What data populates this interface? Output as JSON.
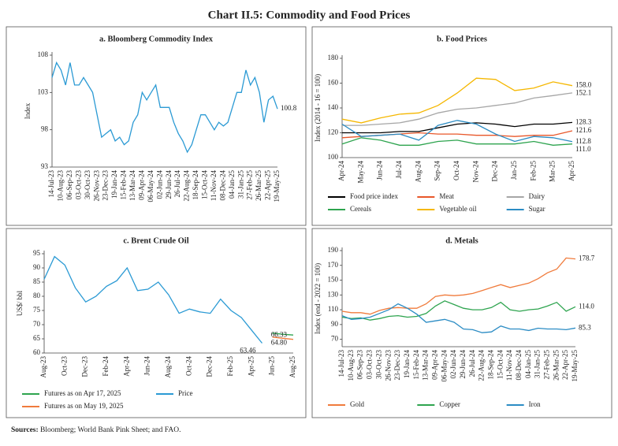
{
  "title": "Chart II.5: Commodity and Food Prices",
  "sources_label": "Sources:",
  "sources": "Bloomberg; World Bank Pink Sheet; and FAO.",
  "chart_data": [
    {
      "type": "line",
      "title": "a. Bloomberg Commodity Index",
      "y_label": "Index",
      "categories": [
        "14-Jul-23",
        null,
        "10-Aug-23",
        null,
        "06-Sep-23",
        null,
        "03-Oct-23",
        null,
        "30-Oct-23",
        null,
        "26-Nov-23",
        null,
        "23-Dec-23",
        null,
        "19-Jan-24",
        null,
        "15-Feb-24",
        null,
        "13-Mar-24",
        null,
        "09-Apr-24",
        null,
        "06-May-24",
        null,
        "02-Jun-24",
        null,
        "29-Jun-24",
        null,
        "26-Jul-24",
        null,
        "22-Aug-24",
        null,
        "18-Sep-24",
        null,
        "15-Oct-24",
        null,
        "11-Nov-24",
        null,
        "08-Dec-24",
        null,
        "04-Jan-25",
        null,
        "31-Jan-25",
        null,
        "27-Feb-25",
        null,
        "26-Mar-25",
        null,
        "22-Apr-25",
        null,
        "19-May-25"
      ],
      "series": [
        {
          "name": "Bloomberg Commodity Index",
          "color": "#2b9ad4",
          "values": [
            105,
            107,
            106,
            104,
            107,
            104,
            104,
            105,
            104,
            103,
            100,
            97,
            97.5,
            98,
            96.5,
            97,
            96,
            96.5,
            99,
            100,
            103,
            102,
            103,
            104,
            101,
            101,
            101,
            99,
            97.5,
            96.5,
            95,
            96,
            98,
            100,
            100,
            99,
            98,
            99,
            98.5,
            99,
            101,
            103,
            103,
            106,
            104,
            105,
            103,
            99,
            102,
            102.5,
            100.8
          ]
        }
      ],
      "ylim": [
        93,
        108
      ],
      "yticks": [
        93,
        98,
        103,
        108
      ],
      "legend": false
    },
    {
      "type": "line",
      "title": "b. Food Prices",
      "y_label": "Index (2014 - 16 = 100)",
      "categories": [
        "Apr-24",
        "May-24",
        "Jun-24",
        "Jul-24",
        "Aug-24",
        "Sep-24",
        "Oct-24",
        "Nov-24",
        "Dec-24",
        "Jan-25",
        "Feb-25",
        "Mar-25",
        "Apr-25"
      ],
      "series": [
        {
          "name": "Food price index",
          "color": "#000000",
          "values": [
            120,
            120,
            120,
            121,
            121,
            124,
            127,
            128,
            127,
            125,
            127,
            127,
            128.3
          ]
        },
        {
          "name": "Meat",
          "color": "#e8572a",
          "values": [
            116,
            117,
            118,
            119,
            120,
            119,
            119,
            118,
            118,
            117,
            118,
            118,
            121.6
          ]
        },
        {
          "name": "Dairy",
          "color": "#a6a6a6",
          "values": [
            126,
            126,
            127,
            128,
            131,
            136,
            139,
            140,
            142,
            144,
            148,
            150,
            152.1
          ]
        },
        {
          "name": "Cereals",
          "color": "#2ea44f",
          "values": [
            111,
            116,
            114,
            110,
            110,
            113,
            114,
            111,
            111,
            111,
            113,
            110,
            111
          ],
          "value_labels": [
            null,
            null,
            null,
            null,
            null,
            null,
            null,
            null,
            null,
            null,
            null,
            null,
            "111.0"
          ]
        },
        {
          "name": "Vegetable oil",
          "color": "#f5b700",
          "values": [
            131,
            128,
            132,
            135,
            136,
            142,
            152,
            164,
            163,
            154,
            156,
            161,
            158
          ],
          "value_labels": [
            null,
            null,
            null,
            null,
            null,
            null,
            null,
            null,
            null,
            null,
            null,
            null,
            "158.0"
          ]
        },
        {
          "name": "Sugar",
          "color": "#2b8cc4",
          "values": [
            127,
            117,
            118,
            119,
            114,
            126,
            130,
            127,
            119,
            113,
            117,
            116,
            112.8
          ]
        }
      ],
      "ylim": [
        100,
        180
      ],
      "yticks": [
        100,
        120,
        140,
        160,
        180
      ],
      "legend": true
    },
    {
      "type": "line",
      "title": "c. Brent Crude Oil",
      "y_label": "US$/ bbl",
      "categories": [
        "Aug-23",
        null,
        "Oct-23",
        null,
        "Dec-23",
        null,
        "Feb-24",
        null,
        "Apr-24",
        null,
        "Jun-24",
        null,
        "Aug-24",
        null,
        "Oct-24",
        null,
        "Dec-24",
        null,
        "Feb-25",
        null,
        "Apr-25",
        null,
        "Jun-25",
        null,
        "Aug-25"
      ],
      "series": [
        {
          "name": "Futures as on Apr 17, 2025",
          "color": "#2ea44f",
          "values": [
            null,
            null,
            null,
            null,
            null,
            null,
            null,
            null,
            null,
            null,
            null,
            null,
            null,
            null,
            null,
            null,
            null,
            null,
            null,
            null,
            null,
            null,
            67,
            66.6,
            66.33
          ]
        },
        {
          "name": "Price",
          "color": "#2b9ad4",
          "values": [
            86,
            94,
            91,
            83,
            78,
            80,
            83.5,
            85.5,
            90,
            82,
            82.5,
            85,
            80.5,
            74,
            75.5,
            74.5,
            74,
            79,
            75,
            72.5,
            68,
            63.46,
            null,
            null,
            null
          ]
        },
        {
          "name": "Futures as on May 19, 2025",
          "color": "#f07b3c",
          "values": [
            null,
            null,
            null,
            null,
            null,
            null,
            null,
            null,
            null,
            null,
            null,
            null,
            null,
            null,
            null,
            null,
            null,
            null,
            null,
            null,
            null,
            null,
            65.6,
            65.2,
            64.8
          ],
          "value_labels": [
            null,
            null,
            null,
            null,
            null,
            null,
            null,
            null,
            null,
            null,
            null,
            null,
            null,
            null,
            null,
            null,
            null,
            null,
            null,
            null,
            null,
            null,
            null,
            null,
            "64.80"
          ]
        }
      ],
      "ylim": [
        60,
        95
      ],
      "yticks": [
        60,
        65,
        70,
        75,
        80,
        85,
        90,
        95
      ],
      "legend": true
    },
    {
      "type": "line",
      "title": "d. Metals",
      "y_label": "Index (end - 2022 = 100)",
      "categories": [
        "14-Jul-23",
        "10-Aug-23",
        "06-Sep-23",
        "03-Oct-23",
        "30-Oct-23",
        "26-Nov-23",
        "23-Dec-23",
        "19-Jan-24",
        "15-Feb-24",
        "13-Mar-24",
        "09-Apr-24",
        "06-May-24",
        "02-Jun-24",
        "29-Jun-24",
        "26-Jul-24",
        "22-Aug-24",
        "18-Sep-24",
        "15-Oct-24",
        "11-Nov-24",
        "08-Dec-24",
        "04-Jan-25",
        "31-Jan-25",
        "27-Feb-25",
        "26-Mar-25",
        "22-Apr-25",
        "19-May-25"
      ],
      "series": [
        {
          "name": "Gold",
          "color": "#f07b3c",
          "values": [
            108,
            106,
            106,
            104,
            109,
            112,
            113,
            112,
            112,
            118,
            128,
            130,
            129,
            130,
            132,
            136,
            140,
            144,
            140,
            143,
            146,
            152,
            160,
            165,
            180,
            178.7
          ]
        },
        {
          "name": "Copper",
          "color": "#2ea44f",
          "values": [
            100,
            98,
            99,
            96,
            98,
            101,
            102,
            100,
            101,
            105,
            115,
            122,
            117,
            112,
            110,
            110,
            113,
            120,
            110,
            108,
            110,
            111,
            115,
            120,
            108,
            114
          ],
          "value_labels": [
            null,
            null,
            null,
            null,
            null,
            null,
            null,
            null,
            null,
            null,
            null,
            null,
            null,
            null,
            null,
            null,
            null,
            null,
            null,
            null,
            null,
            null,
            null,
            null,
            null,
            "114.0"
          ]
        },
        {
          "name": "Iron",
          "color": "#2b8cc4",
          "values": [
            102,
            97,
            98,
            100,
            105,
            110,
            118,
            112,
            104,
            93,
            95,
            97,
            93,
            84,
            83,
            79,
            80,
            88,
            84,
            84,
            82,
            85,
            84,
            84,
            83,
            85.3
          ]
        }
      ],
      "ylim": [
        60,
        190
      ],
      "yticks": [
        70,
        90,
        110,
        130,
        150,
        170,
        190
      ],
      "legend": true
    }
  ]
}
